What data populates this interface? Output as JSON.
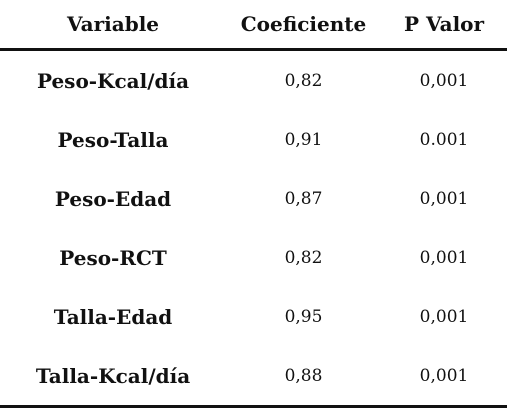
{
  "table": {
    "headers": [
      "Variable",
      "Coeficiente",
      "P Valor"
    ],
    "rows": [
      {
        "variable": "Peso-Kcal/día",
        "coeficiente": "0,82",
        "p_valor": "0,001"
      },
      {
        "variable": "Peso-Talla",
        "coeficiente": "0,91",
        "p_valor": "0.001"
      },
      {
        "variable": "Peso-Edad",
        "coeficiente": "0,87",
        "p_valor": "0,001"
      },
      {
        "variable": "Peso-RCT",
        "coeficiente": "0,82",
        "p_valor": "0,001"
      },
      {
        "variable": "Talla-Edad",
        "coeficiente": "0,95",
        "p_valor": "0,001"
      },
      {
        "variable": "Talla-Kcal/día",
        "coeficiente": "0,88",
        "p_valor": "0,001"
      }
    ]
  }
}
